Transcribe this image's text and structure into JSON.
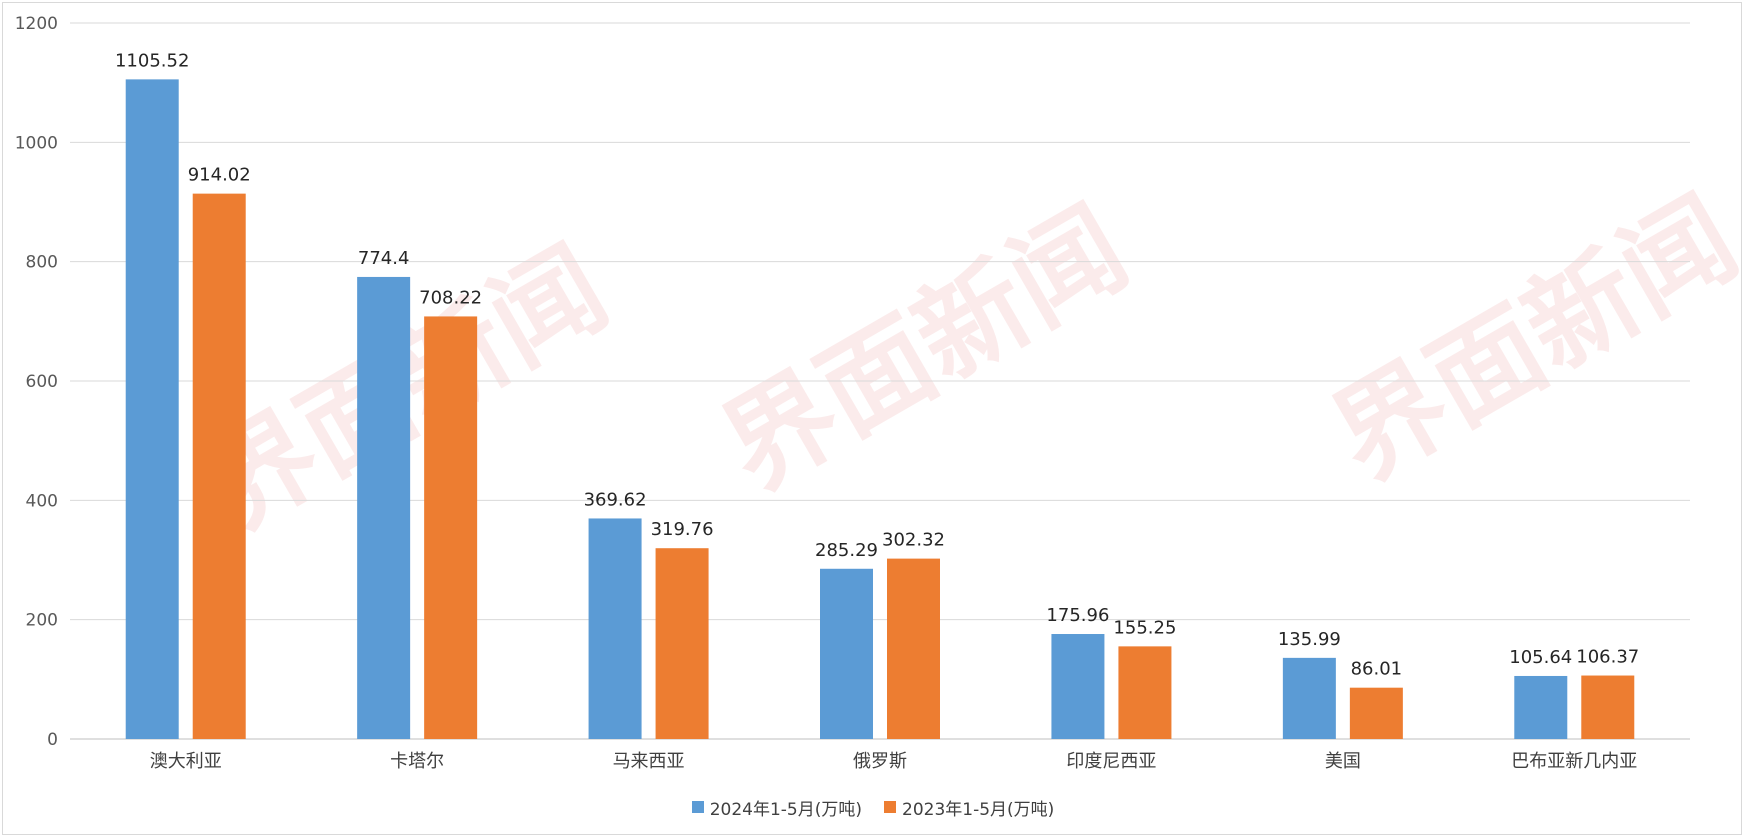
{
  "watermark": "界面新闻",
  "chart_data": {
    "type": "bar",
    "categories": [
      "澳大利亚",
      "卡塔尔",
      "马来西亚",
      "俄罗斯",
      "印度尼西亚",
      "美国",
      "巴布亚新几内亚"
    ],
    "series": [
      {
        "name": "2024年1-5月(万吨)",
        "color": "#5b9bd5",
        "values": [
          1105.52,
          774.4,
          369.62,
          285.29,
          175.96,
          135.99,
          105.64
        ],
        "labels": [
          "1105.52",
          "774.4",
          "369.62",
          "285.29",
          "175.96",
          "135.99",
          "105.64"
        ]
      },
      {
        "name": "2023年1-5月(万吨)",
        "color": "#ed7d31",
        "values": [
          914.02,
          708.22,
          319.76,
          302.32,
          155.25,
          86.01,
          106.37
        ],
        "labels": [
          "914.02",
          "708.22",
          "319.76",
          "302.32",
          "155.25",
          "86.01",
          "106.37"
        ]
      }
    ],
    "yticks": [
      "0",
      "200",
      "400",
      "600",
      "800",
      "1000",
      "1200"
    ],
    "ylim": [
      0,
      1200
    ],
    "grid": true,
    "legend_position": "bottom"
  }
}
